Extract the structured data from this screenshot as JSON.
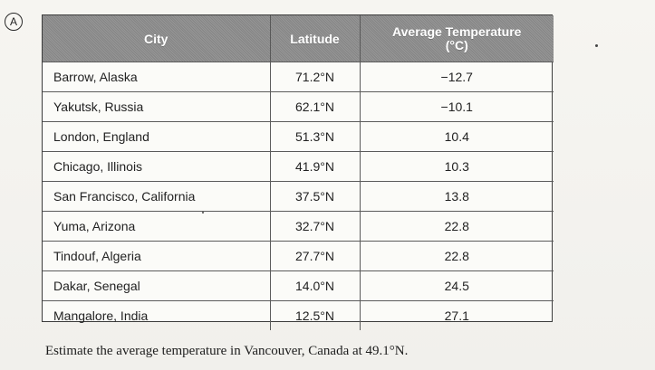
{
  "marker": "A",
  "table": {
    "headers": {
      "city": "City",
      "latitude": "Latitude",
      "average_temperature_line_1": "Average Temperature",
      "average_temperature_line_2": "(°C)"
    },
    "rows": [
      {
        "city": "Barrow, Alaska",
        "latitude": "71.2°N",
        "temperature": "−12.7"
      },
      {
        "city": "Yakutsk, Russia",
        "latitude": "62.1°N",
        "temperature": "−10.1"
      },
      {
        "city": "London, England",
        "latitude": "51.3°N",
        "temperature": "10.4"
      },
      {
        "city": "Chicago, Illinois",
        "latitude": "41.9°N",
        "temperature": "10.3"
      },
      {
        "city": "San Francisco, California",
        "latitude": "37.5°N",
        "temperature": "13.8"
      },
      {
        "city": "Yuma, Arizona",
        "latitude": "32.7°N",
        "temperature": "22.8"
      },
      {
        "city": "Tindouf, Algeria",
        "latitude": "27.7°N",
        "temperature": "22.8"
      },
      {
        "city": "Dakar, Senegal",
        "latitude": "14.0°N",
        "temperature": "24.5"
      },
      {
        "city": "Mangalore, India",
        "latitude": "12.5°N",
        "temperature": "27.1"
      }
    ]
  },
  "caption": "Estimate the average temperature in Vancouver, Canada at 49.1°N."
}
